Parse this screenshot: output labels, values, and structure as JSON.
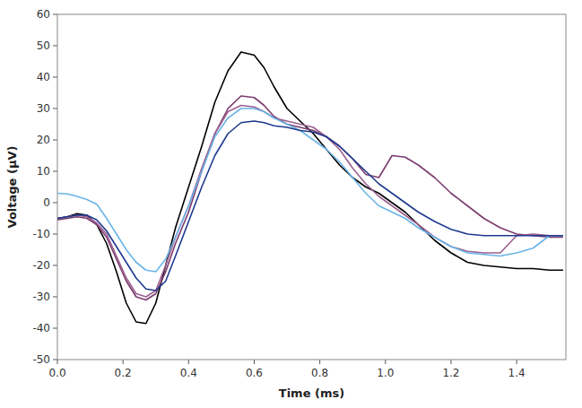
{
  "chart_data": {
    "type": "line",
    "xlabel": "Time (ms)",
    "ylabel": "Voltage (μV)",
    "xlim": [
      0.0,
      1.55
    ],
    "ylim": [
      -50,
      60
    ],
    "xticks": [
      {
        "value": 0.0,
        "label": "0.0"
      },
      0.2,
      0.4,
      0.6,
      0.8,
      {
        "value": 1.0,
        "label": "1.0"
      },
      1.2,
      1.4
    ],
    "yticks": [
      -50,
      -40,
      -30,
      -20,
      -10,
      0,
      10,
      20,
      30,
      40,
      50,
      60
    ],
    "grid": false,
    "x": [
      0.0,
      0.03,
      0.06,
      0.09,
      0.12,
      0.15,
      0.18,
      0.21,
      0.24,
      0.27,
      0.3,
      0.33,
      0.36,
      0.4,
      0.44,
      0.48,
      0.52,
      0.56,
      0.6,
      0.63,
      0.66,
      0.7,
      0.74,
      0.78,
      0.82,
      0.86,
      0.9,
      0.94,
      0.98,
      1.02,
      1.06,
      1.1,
      1.15,
      1.2,
      1.25,
      1.3,
      1.35,
      1.4,
      1.45,
      1.5,
      1.54
    ],
    "series": [
      {
        "color": "#000000",
        "values": [
          -5.0,
          -4.5,
          -3.5,
          -4.0,
          -7.0,
          -13.0,
          -22.0,
          -32.0,
          -38.0,
          -38.5,
          -32.0,
          -20.0,
          -8.0,
          5.0,
          18.0,
          32.0,
          42.0,
          48.0,
          47.0,
          43.0,
          37.0,
          30.0,
          26.0,
          22.0,
          17.0,
          12.0,
          8.0,
          5.0,
          3.0,
          0.0,
          -3.0,
          -7.0,
          -12.0,
          -16.0,
          -19.0,
          -20.0,
          -20.5,
          -21.0,
          -21.0,
          -21.5,
          -21.5
        ]
      },
      {
        "color": "#7b3b6e",
        "values": [
          -5.5,
          -5.0,
          -4.5,
          -5.0,
          -7.0,
          -11.0,
          -18.0,
          -25.0,
          -30.0,
          -31.0,
          -29.0,
          -22.0,
          -13.0,
          -3.0,
          10.0,
          22.0,
          30.0,
          34.0,
          33.5,
          31.0,
          27.5,
          25.0,
          24.0,
          23.0,
          21.0,
          18.0,
          14.0,
          9.0,
          8.0,
          15.0,
          14.5,
          12.0,
          8.0,
          3.0,
          -1.0,
          -5.0,
          -8.0,
          -10.0,
          -10.5,
          -11.0,
          -11.0
        ]
      },
      {
        "color": "#9b6090",
        "values": [
          -5.0,
          -4.5,
          -4.0,
          -4.5,
          -6.5,
          -10.0,
          -17.0,
          -24.0,
          -29.0,
          -30.0,
          -28.0,
          -20.0,
          -11.0,
          -1.0,
          11.0,
          22.0,
          29.0,
          31.0,
          30.5,
          29.0,
          27.0,
          26.0,
          25.0,
          24.0,
          21.0,
          17.0,
          11.0,
          6.0,
          2.0,
          -1.0,
          -4.0,
          -7.0,
          -11.0,
          -14.0,
          -15.5,
          -16.0,
          -16.0,
          -10.5,
          -10.0,
          -10.5,
          -10.5
        ]
      },
      {
        "color": "#6ab4e8",
        "values": [
          3.0,
          2.8,
          2.0,
          1.0,
          -0.5,
          -5.0,
          -10.0,
          -15.0,
          -19.0,
          -21.5,
          -22.0,
          -18.0,
          -11.0,
          -1.0,
          10.0,
          21.0,
          27.0,
          30.0,
          30.0,
          29.0,
          27.0,
          25.0,
          23.0,
          20.0,
          17.0,
          13.0,
          8.0,
          3.0,
          -1.0,
          -3.0,
          -5.0,
          -8.0,
          -11.0,
          -14.0,
          -16.0,
          -16.5,
          -17.0,
          -16.0,
          -14.5,
          -10.5,
          -10.5
        ]
      },
      {
        "color": "#1e3a90",
        "values": [
          -5.0,
          -4.5,
          -4.0,
          -4.0,
          -5.5,
          -9.0,
          -14.0,
          -19.0,
          -24.0,
          -27.5,
          -28.0,
          -25.0,
          -17.0,
          -6.0,
          5.0,
          15.0,
          22.0,
          25.5,
          26.0,
          25.5,
          24.5,
          24.0,
          23.0,
          22.5,
          21.0,
          18.0,
          14.0,
          10.0,
          6.0,
          3.0,
          0.0,
          -3.0,
          -6.0,
          -8.5,
          -10.0,
          -10.5,
          -10.5,
          -10.5,
          -10.5,
          -10.5,
          -10.5
        ]
      }
    ]
  }
}
